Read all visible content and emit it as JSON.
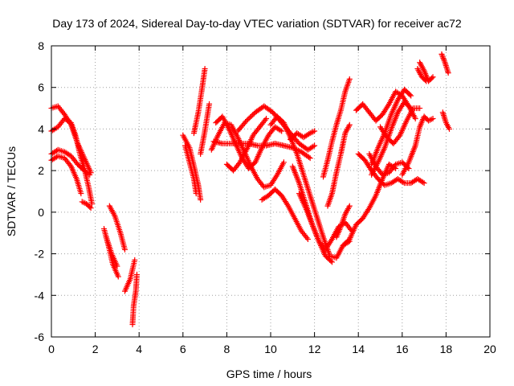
{
  "chart_data": {
    "type": "scatter",
    "title": "Day 173 of 2024, Sidereal Day-to-day VTEC variation (SDTVAR) for receiver ac72",
    "xlabel": "GPS time / hours",
    "ylabel": "SDTVAR / TECUs",
    "xlim": [
      0,
      20
    ],
    "ylim": [
      -6,
      8
    ],
    "xticks": [
      0,
      2,
      4,
      6,
      8,
      10,
      12,
      14,
      16,
      18,
      20
    ],
    "yticks": [
      -6,
      -4,
      -2,
      0,
      2,
      4,
      6,
      8
    ],
    "xtick_labels": [
      "0",
      "2",
      "4",
      "6",
      "8",
      "10",
      "12",
      "14",
      "16",
      "18",
      "20"
    ],
    "ytick_labels": [
      "-6",
      "-4",
      "-2",
      "0",
      "2",
      "4",
      "6",
      "8"
    ],
    "grid": true,
    "marker": "plus",
    "color": "#ff0000",
    "tracks": [
      {
        "name": "a1",
        "points": [
          [
            0.0,
            5.0
          ],
          [
            0.3,
            5.1
          ],
          [
            0.6,
            4.7
          ],
          [
            0.9,
            4.2
          ],
          [
            1.2,
            3.3
          ],
          [
            1.5,
            2.6
          ],
          [
            1.8,
            1.9
          ]
        ]
      },
      {
        "name": "a2",
        "points": [
          [
            0.0,
            3.9
          ],
          [
            0.3,
            4.1
          ],
          [
            0.6,
            4.5
          ],
          [
            0.9,
            4.3
          ],
          [
            1.1,
            3.7
          ],
          [
            1.3,
            2.8
          ],
          [
            1.5,
            2.1
          ],
          [
            1.7,
            1.2
          ],
          [
            1.85,
            0.4
          ]
        ]
      },
      {
        "name": "a3",
        "points": [
          [
            0.0,
            2.8
          ],
          [
            0.3,
            3.0
          ],
          [
            0.6,
            2.9
          ],
          [
            0.9,
            2.7
          ],
          [
            1.2,
            2.3
          ],
          [
            1.5,
            2.0
          ],
          [
            1.75,
            1.8
          ]
        ]
      },
      {
        "name": "a4",
        "points": [
          [
            0.0,
            2.5
          ],
          [
            0.3,
            2.7
          ],
          [
            0.6,
            2.6
          ],
          [
            0.9,
            2.2
          ],
          [
            1.15,
            1.6
          ],
          [
            1.35,
            0.9
          ]
        ]
      },
      {
        "name": "a5",
        "points": [
          [
            1.4,
            0.5
          ],
          [
            1.6,
            0.4
          ],
          [
            1.8,
            0.2
          ]
        ]
      },
      {
        "name": "b1",
        "points": [
          [
            2.4,
            -0.8
          ],
          [
            2.6,
            -1.6
          ],
          [
            2.8,
            -2.5
          ],
          [
            3.05,
            -3.1
          ]
        ]
      },
      {
        "name": "b2",
        "points": [
          [
            2.5,
            -1.2
          ],
          [
            2.75,
            -2.0
          ],
          [
            3.0,
            -2.6
          ]
        ]
      },
      {
        "name": "b3",
        "points": [
          [
            2.65,
            0.3
          ],
          [
            2.9,
            -0.2
          ],
          [
            3.15,
            -1.0
          ],
          [
            3.35,
            -1.8
          ]
        ]
      },
      {
        "name": "b4",
        "points": [
          [
            3.35,
            -3.8
          ],
          [
            3.6,
            -3.2
          ],
          [
            3.8,
            -2.3
          ]
        ]
      },
      {
        "name": "b5",
        "points": [
          [
            3.7,
            -5.4
          ],
          [
            3.75,
            -4.5
          ],
          [
            3.85,
            -3.8
          ],
          [
            3.9,
            -3.0
          ]
        ]
      },
      {
        "name": "c1",
        "points": [
          [
            6.0,
            3.7
          ],
          [
            6.3,
            3.1
          ],
          [
            6.55,
            2.0
          ],
          [
            6.7,
            1.3
          ],
          [
            6.8,
            0.6
          ]
        ]
      },
      {
        "name": "c2",
        "points": [
          [
            6.1,
            3.2
          ],
          [
            6.3,
            2.4
          ],
          [
            6.5,
            1.6
          ],
          [
            6.6,
            0.9
          ]
        ]
      },
      {
        "name": "c3",
        "points": [
          [
            6.5,
            3.8
          ],
          [
            6.7,
            4.8
          ],
          [
            6.85,
            5.8
          ],
          [
            7.0,
            6.9
          ]
        ]
      },
      {
        "name": "c4",
        "points": [
          [
            6.8,
            2.8
          ],
          [
            7.0,
            3.9
          ],
          [
            7.2,
            5.2
          ]
        ]
      },
      {
        "name": "d1",
        "points": [
          [
            7.3,
            3.0
          ],
          [
            7.6,
            3.7
          ],
          [
            7.9,
            4.3
          ],
          [
            8.2,
            4.2
          ],
          [
            8.5,
            3.6
          ],
          [
            8.8,
            2.9
          ],
          [
            9.1,
            2.2
          ],
          [
            9.4,
            1.6
          ],
          [
            9.7,
            1.2
          ],
          [
            10.0,
            1.3
          ],
          [
            10.3,
            1.8
          ],
          [
            10.6,
            2.4
          ]
        ]
      },
      {
        "name": "d2",
        "points": [
          [
            7.5,
            4.3
          ],
          [
            7.8,
            4.6
          ],
          [
            8.1,
            4.0
          ],
          [
            8.4,
            3.3
          ],
          [
            8.7,
            2.6
          ],
          [
            9.0,
            2.1
          ],
          [
            9.3,
            2.4
          ],
          [
            9.6,
            3.1
          ],
          [
            9.9,
            3.7
          ],
          [
            10.2,
            4.1
          ],
          [
            10.5,
            3.9
          ]
        ]
      },
      {
        "name": "d3",
        "points": [
          [
            7.4,
            3.4
          ],
          [
            7.8,
            3.3
          ],
          [
            8.2,
            3.3
          ],
          [
            8.6,
            3.3
          ],
          [
            9.0,
            3.3
          ],
          [
            9.4,
            3.2
          ],
          [
            9.8,
            3.2
          ],
          [
            10.2,
            3.3
          ],
          [
            10.6,
            3.2
          ],
          [
            11.0,
            3.1
          ],
          [
            11.4,
            2.9
          ],
          [
            11.8,
            2.6
          ]
        ]
      },
      {
        "name": "d4",
        "points": [
          [
            8.5,
            3.9
          ],
          [
            8.9,
            4.4
          ],
          [
            9.3,
            4.8
          ],
          [
            9.7,
            5.1
          ],
          [
            10.1,
            4.8
          ],
          [
            10.5,
            4.3
          ],
          [
            10.9,
            3.8
          ],
          [
            11.3,
            3.3
          ],
          [
            11.7,
            3.0
          ],
          [
            12.0,
            3.2
          ]
        ]
      },
      {
        "name": "d5",
        "points": [
          [
            8.0,
            2.3
          ],
          [
            8.3,
            2.0
          ],
          [
            8.6,
            2.4
          ],
          [
            8.9,
            3.0
          ],
          [
            9.2,
            3.7
          ],
          [
            9.5,
            4.1
          ],
          [
            9.8,
            4.5
          ]
        ]
      },
      {
        "name": "e1",
        "points": [
          [
            9.6,
            0.6
          ],
          [
            9.9,
            0.8
          ],
          [
            10.2,
            1.1
          ],
          [
            10.5,
            0.8
          ],
          [
            10.8,
            0.3
          ],
          [
            11.1,
            -0.3
          ],
          [
            11.4,
            -0.9
          ],
          [
            11.7,
            -1.3
          ]
        ]
      },
      {
        "name": "e2",
        "points": [
          [
            10.0,
            4.2
          ],
          [
            10.3,
            4.6
          ],
          [
            10.6,
            4.3
          ],
          [
            10.9,
            3.6
          ],
          [
            11.2,
            2.8
          ],
          [
            11.5,
            1.8
          ],
          [
            11.8,
            0.8
          ],
          [
            12.1,
            -0.2
          ],
          [
            12.4,
            -1.2
          ],
          [
            12.7,
            -2.1
          ],
          [
            13.0,
            -2.2
          ],
          [
            13.3,
            -1.6
          ],
          [
            13.6,
            -1.4
          ]
        ]
      },
      {
        "name": "e3",
        "points": [
          [
            11.0,
            2.2
          ],
          [
            11.3,
            1.4
          ],
          [
            11.6,
            0.4
          ],
          [
            11.9,
            -0.6
          ],
          [
            12.2,
            -1.4
          ],
          [
            12.5,
            -2.1
          ],
          [
            12.8,
            -2.4
          ]
        ]
      },
      {
        "name": "e4",
        "points": [
          [
            10.9,
            3.5
          ],
          [
            11.2,
            3.8
          ],
          [
            11.5,
            3.6
          ],
          [
            11.8,
            3.8
          ],
          [
            12.0,
            3.9
          ]
        ]
      },
      {
        "name": "e5",
        "points": [
          [
            11.3,
            0.9
          ],
          [
            11.6,
            0.2
          ],
          [
            11.9,
            -0.6
          ],
          [
            12.2,
            -1.4
          ],
          [
            12.5,
            -1.8
          ],
          [
            12.8,
            -1.3
          ],
          [
            13.1,
            -0.7
          ],
          [
            13.4,
            -0.5
          ],
          [
            13.7,
            -0.9
          ]
        ]
      },
      {
        "name": "f1",
        "points": [
          [
            12.4,
            1.7
          ],
          [
            12.6,
            2.5
          ],
          [
            12.8,
            3.4
          ],
          [
            13.0,
            4.2
          ],
          [
            13.2,
            4.9
          ],
          [
            13.4,
            5.8
          ],
          [
            13.6,
            6.4
          ]
        ]
      },
      {
        "name": "f2",
        "points": [
          [
            12.6,
            0.3
          ],
          [
            12.8,
            0.9
          ],
          [
            13.0,
            1.9
          ],
          [
            13.2,
            2.8
          ],
          [
            13.4,
            3.8
          ],
          [
            13.6,
            4.2
          ]
        ]
      },
      {
        "name": "f3",
        "points": [
          [
            13.0,
            -1.2
          ],
          [
            13.2,
            -0.7
          ],
          [
            13.4,
            -0.1
          ],
          [
            13.6,
            0.3
          ]
        ]
      },
      {
        "name": "f4",
        "points": [
          [
            13.3,
            -1.6
          ],
          [
            13.6,
            -1.3
          ],
          [
            13.9,
            -0.6
          ],
          [
            14.2,
            -0.3
          ],
          [
            14.5,
            0.2
          ],
          [
            14.8,
            0.8
          ],
          [
            15.1,
            1.6
          ],
          [
            15.4,
            2.3
          ],
          [
            15.7,
            2.1
          ]
        ]
      },
      {
        "name": "g1",
        "points": [
          [
            13.9,
            4.9
          ],
          [
            14.2,
            5.2
          ],
          [
            14.5,
            4.8
          ],
          [
            14.8,
            4.4
          ],
          [
            15.1,
            4.7
          ],
          [
            15.4,
            5.2
          ],
          [
            15.7,
            5.8
          ],
          [
            16.0,
            5.6
          ],
          [
            16.3,
            5.1
          ],
          [
            16.6,
            4.5
          ]
        ]
      },
      {
        "name": "g2",
        "points": [
          [
            14.0,
            2.8
          ],
          [
            14.3,
            2.5
          ],
          [
            14.6,
            2.0
          ],
          [
            14.9,
            1.6
          ],
          [
            15.2,
            1.3
          ],
          [
            15.5,
            1.4
          ],
          [
            15.8,
            1.6
          ],
          [
            16.1,
            1.4
          ],
          [
            16.4,
            1.4
          ],
          [
            16.7,
            1.6
          ],
          [
            17.0,
            1.4
          ]
        ]
      },
      {
        "name": "g3",
        "points": [
          [
            14.5,
            2.8
          ],
          [
            14.8,
            2.2
          ],
          [
            15.1,
            1.8
          ],
          [
            15.4,
            1.9
          ],
          [
            15.7,
            2.3
          ],
          [
            16.0,
            2.4
          ],
          [
            16.3,
            2.1
          ]
        ]
      },
      {
        "name": "g4",
        "points": [
          [
            15.0,
            4.1
          ],
          [
            15.3,
            3.6
          ],
          [
            15.6,
            3.3
          ],
          [
            15.9,
            3.7
          ],
          [
            16.2,
            4.4
          ],
          [
            16.5,
            5.0
          ],
          [
            16.8,
            5.0
          ]
        ]
      },
      {
        "name": "g5",
        "points": [
          [
            14.6,
            1.8
          ],
          [
            14.9,
            2.4
          ],
          [
            15.2,
            3.1
          ],
          [
            15.5,
            4.0
          ],
          [
            15.8,
            4.8
          ],
          [
            16.1,
            5.3
          ],
          [
            16.4,
            5.0
          ]
        ]
      },
      {
        "name": "g6",
        "points": [
          [
            14.6,
            2.3
          ],
          [
            14.9,
            3.1
          ],
          [
            15.2,
            3.8
          ],
          [
            15.5,
            4.7
          ],
          [
            15.8,
            5.4
          ],
          [
            16.1,
            5.9
          ],
          [
            16.4,
            5.6
          ]
        ]
      },
      {
        "name": "h1",
        "points": [
          [
            16.0,
            1.8
          ],
          [
            16.3,
            2.4
          ],
          [
            16.6,
            3.2
          ],
          [
            16.8,
            4.1
          ],
          [
            17.0,
            4.6
          ],
          [
            17.2,
            4.4
          ],
          [
            17.4,
            4.5
          ]
        ]
      },
      {
        "name": "h2",
        "points": [
          [
            16.7,
            6.9
          ],
          [
            16.9,
            6.5
          ],
          [
            17.1,
            6.3
          ]
        ]
      },
      {
        "name": "h3",
        "points": [
          [
            16.8,
            7.2
          ],
          [
            17.0,
            6.8
          ],
          [
            17.2,
            6.3
          ],
          [
            17.4,
            6.5
          ]
        ]
      },
      {
        "name": "h4",
        "points": [
          [
            17.8,
            7.6
          ],
          [
            17.95,
            7.2
          ],
          [
            18.1,
            6.7
          ]
        ]
      },
      {
        "name": "h5",
        "points": [
          [
            17.85,
            4.8
          ],
          [
            18.0,
            4.3
          ],
          [
            18.15,
            4.0
          ]
        ]
      }
    ]
  }
}
